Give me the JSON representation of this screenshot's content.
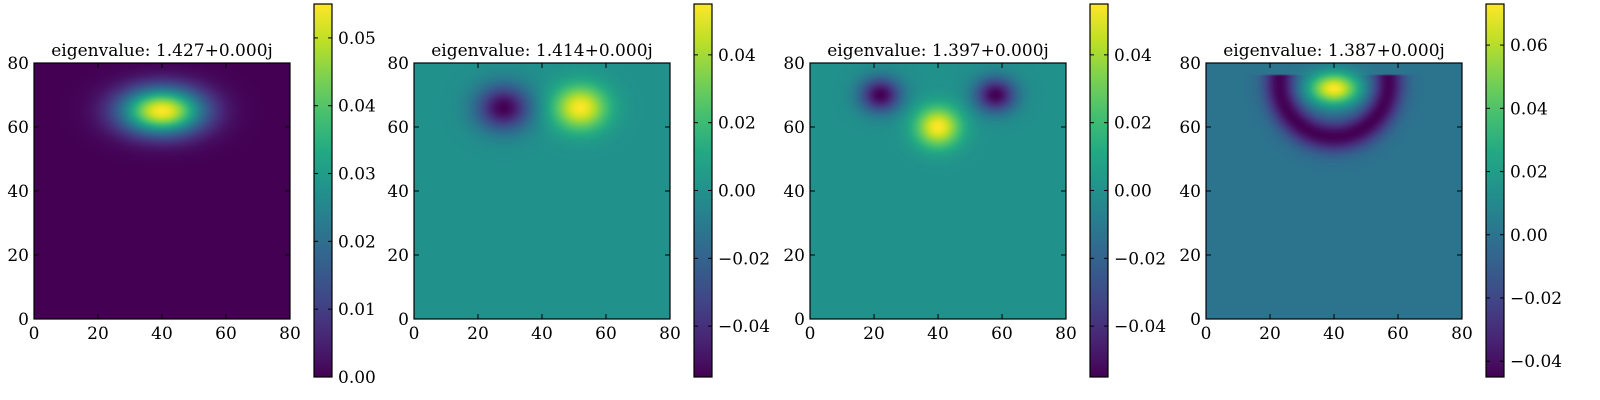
{
  "chart_data": [
    {
      "type": "heatmap",
      "title": "eigenvalue: 1.427+0.000j",
      "xlim": [
        0,
        80
      ],
      "ylim": [
        0,
        80
      ],
      "xticks": [
        0,
        20,
        40,
        60,
        80
      ],
      "yticks": [
        0,
        20,
        40,
        60,
        80
      ],
      "colormap": "viridis",
      "color_range": [
        0.0,
        0.055
      ],
      "colorbar_ticks": [
        0.0,
        0.01,
        0.02,
        0.03,
        0.04,
        0.05
      ],
      "colorbar_labels": [
        "0.00",
        "0.01",
        "0.02",
        "0.03",
        "0.04",
        "0.05"
      ],
      "background_value": 0.0,
      "blobs": [
        {
          "x": 40,
          "y": 65,
          "sx": 9.0,
          "sy": 5.0,
          "amp": 0.055
        }
      ],
      "ring": null
    },
    {
      "type": "heatmap",
      "title": "eigenvalue: 1.414+0.000j",
      "xlim": [
        0,
        80
      ],
      "ylim": [
        0,
        80
      ],
      "xticks": [
        0,
        20,
        40,
        60,
        80
      ],
      "yticks": [
        0,
        20,
        40,
        60,
        80
      ],
      "colormap": "viridis",
      "color_range": [
        -0.055,
        0.055
      ],
      "colorbar_ticks": [
        -0.04,
        -0.02,
        0.0,
        0.02,
        0.04
      ],
      "colorbar_labels": [
        "−0.04",
        "−0.02",
        "0.00",
        "0.02",
        "0.04"
      ],
      "background_value": 0.0,
      "blobs": [
        {
          "x": 28,
          "y": 66,
          "sx": 6.0,
          "sy": 5.0,
          "amp": -0.055
        },
        {
          "x": 52,
          "y": 66,
          "sx": 6.0,
          "sy": 5.0,
          "amp": 0.055
        }
      ],
      "ring": null
    },
    {
      "type": "heatmap",
      "title": "eigenvalue: 1.397+0.000j",
      "xlim": [
        0,
        80
      ],
      "ylim": [
        0,
        80
      ],
      "xticks": [
        0,
        20,
        40,
        60,
        80
      ],
      "yticks": [
        0,
        20,
        40,
        60,
        80
      ],
      "colormap": "viridis",
      "color_range": [
        -0.055,
        0.055
      ],
      "colorbar_ticks": [
        -0.04,
        -0.02,
        0.0,
        0.02,
        0.04
      ],
      "colorbar_labels": [
        "−0.04",
        "−0.02",
        "0.00",
        "0.02",
        "0.04"
      ],
      "background_value": 0.0,
      "blobs": [
        {
          "x": 22,
          "y": 70,
          "sx": 4.5,
          "sy": 3.8,
          "amp": -0.055
        },
        {
          "x": 58,
          "y": 70,
          "sx": 4.5,
          "sy": 3.8,
          "amp": -0.055
        },
        {
          "x": 40,
          "y": 60,
          "sx": 5.0,
          "sy": 4.5,
          "amp": 0.055
        }
      ],
      "ring": null
    },
    {
      "type": "heatmap",
      "title": "eigenvalue: 1.387+0.000j",
      "xlim": [
        0,
        80
      ],
      "ylim": [
        0,
        80
      ],
      "xticks": [
        0,
        20,
        40,
        60,
        80
      ],
      "yticks": [
        0,
        20,
        40,
        60,
        80
      ],
      "colormap": "viridis",
      "color_range": [
        -0.045,
        0.073
      ],
      "colorbar_ticks": [
        -0.04,
        -0.02,
        0.0,
        0.02,
        0.04,
        0.06
      ],
      "colorbar_labels": [
        "−0.04",
        "−0.02",
        "0.00",
        "0.02",
        "0.04",
        "0.06"
      ],
      "background_value": 0.0,
      "blobs": [
        {
          "x": 40,
          "y": 72,
          "sx": 5.5,
          "sy": 3.5,
          "amp": 0.073
        }
      ],
      "ring": {
        "cx": 40,
        "cy": 74,
        "r": 17,
        "width": 3.5,
        "amp": -0.045
      }
    }
  ]
}
